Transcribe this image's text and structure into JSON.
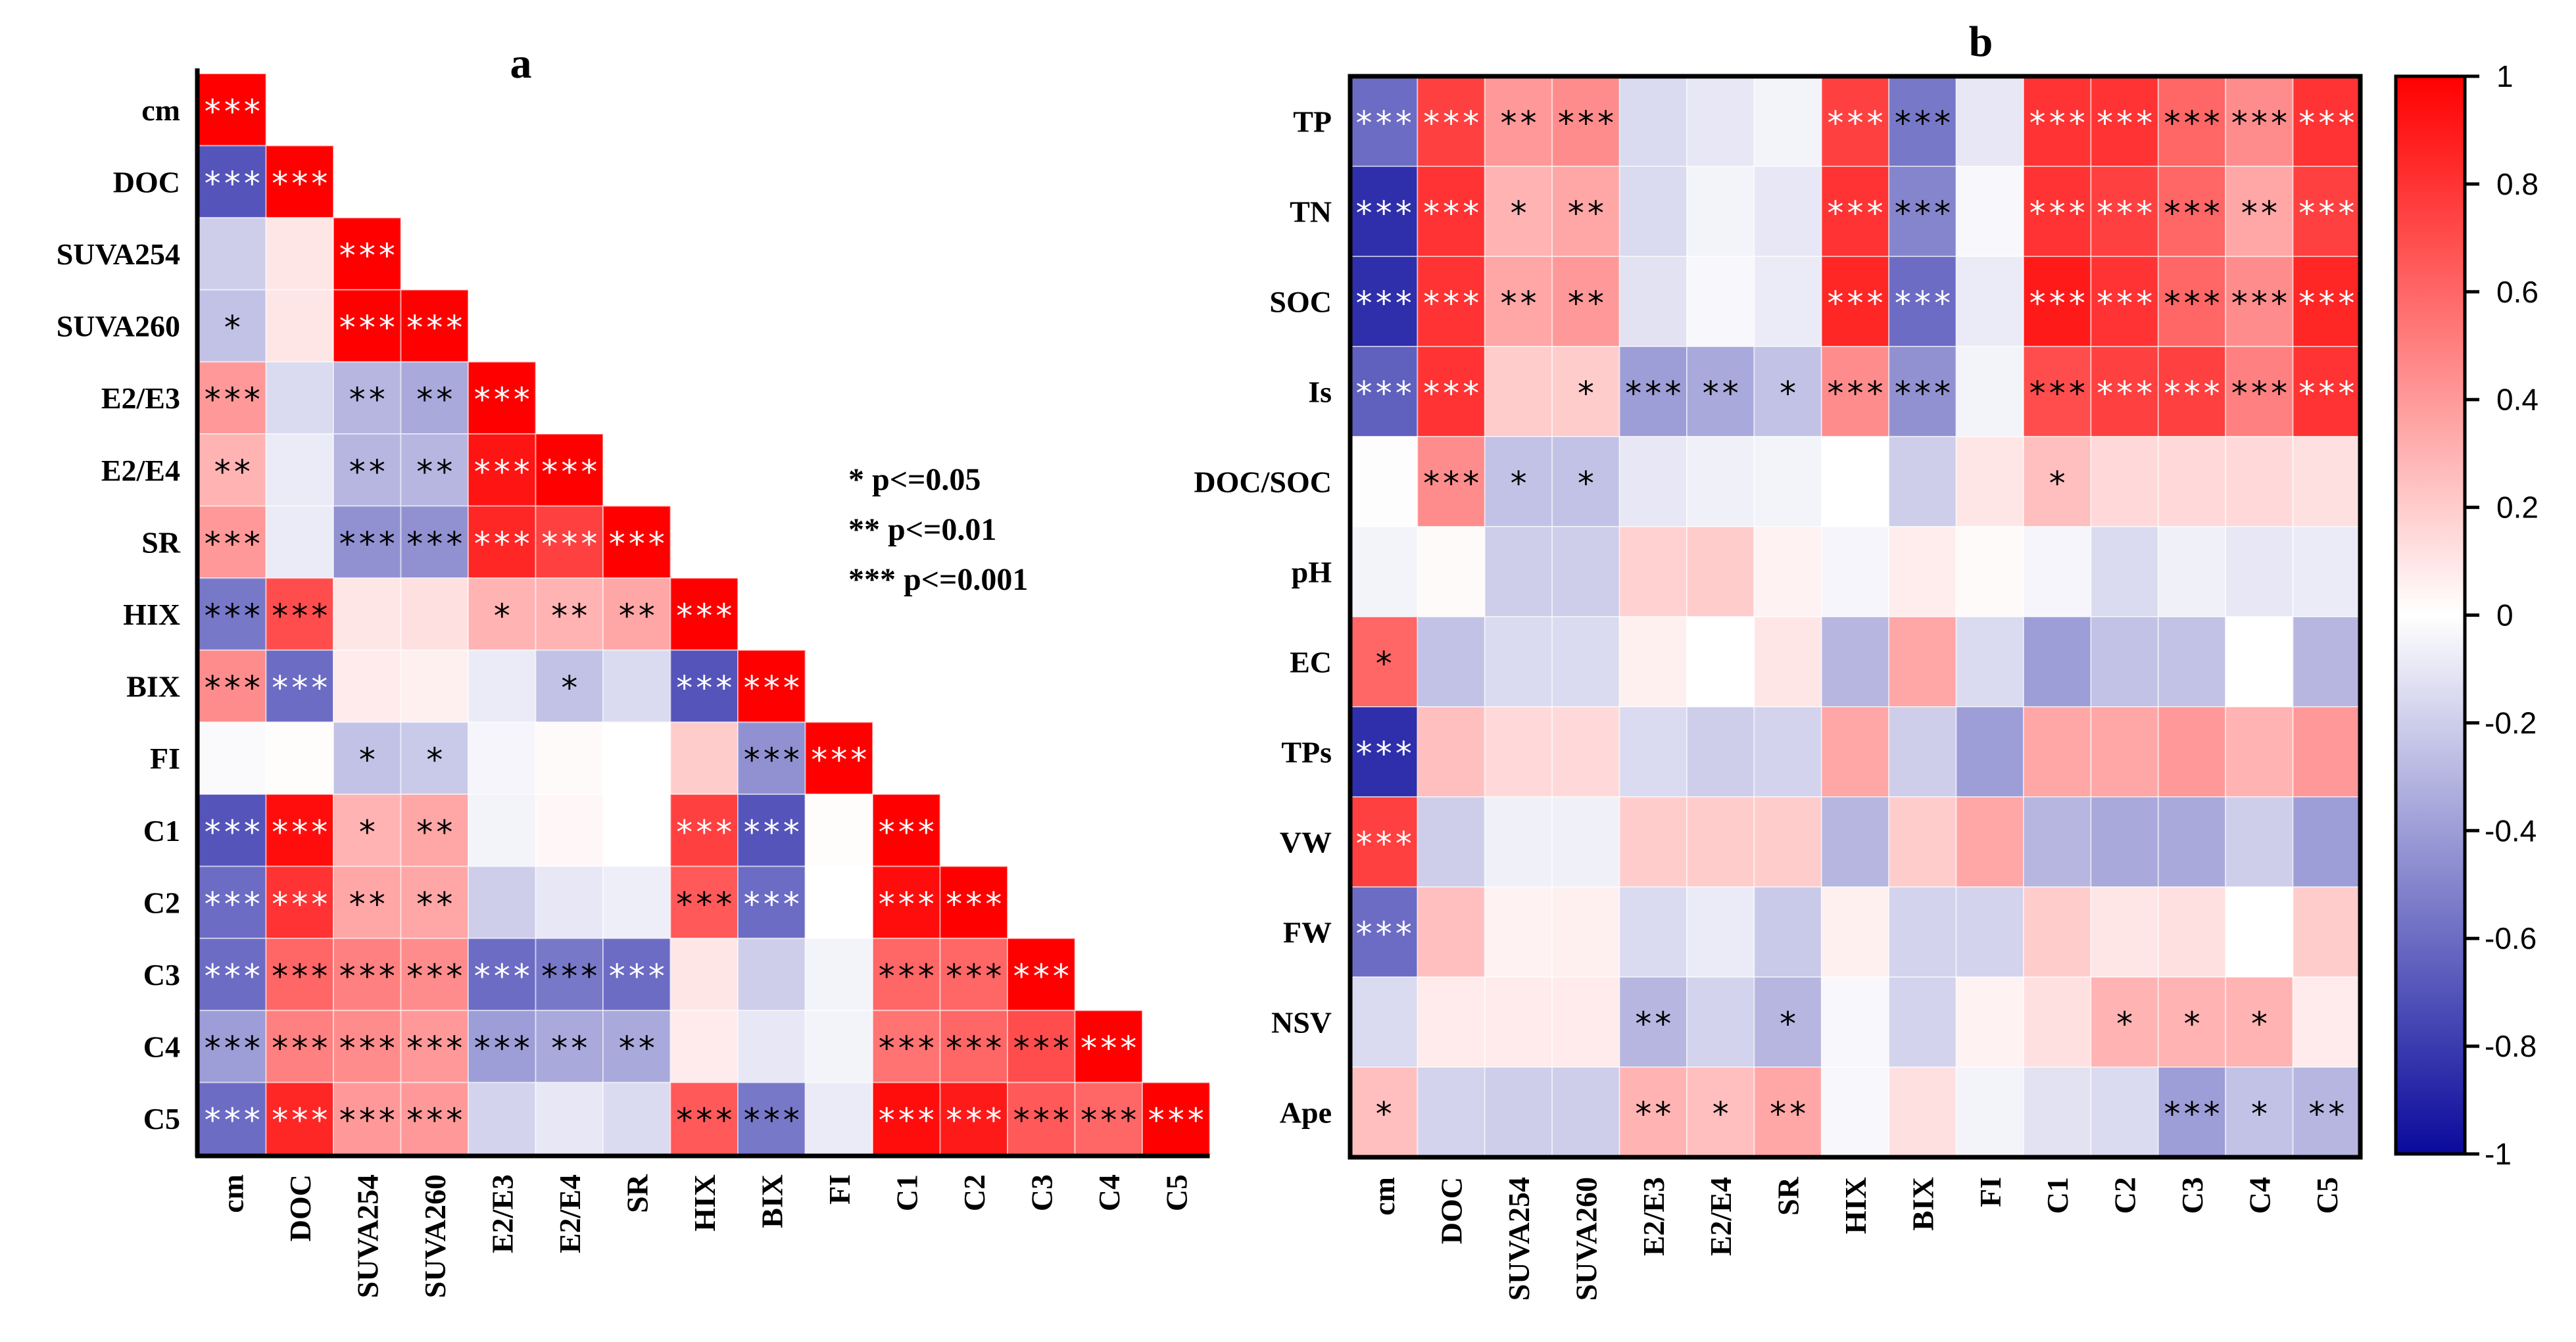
{
  "chart_data": [
    {
      "type": "heatmap",
      "title": "a",
      "shape": "lower-triangle",
      "rows": [
        "cm",
        "DOC",
        "SUVA254",
        "SUVA260",
        "E2/E3",
        "E2/E4",
        "SR",
        "HIX",
        "BIX",
        "FI",
        "C1",
        "C2",
        "C3",
        "C4",
        "C5"
      ],
      "cols": [
        "cm",
        "DOC",
        "SUVA254",
        "SUVA260",
        "E2/E3",
        "E2/E4",
        "SR",
        "HIX",
        "BIX",
        "FI",
        "C1",
        "C2",
        "C3",
        "C4",
        "C5"
      ],
      "values": [
        [
          1
        ],
        [
          -0.7,
          1
        ],
        [
          -0.2,
          0.1,
          1
        ],
        [
          -0.25,
          0.1,
          1,
          1
        ],
        [
          0.4,
          -0.15,
          -0.3,
          -0.35,
          1
        ],
        [
          0.3,
          -0.08,
          -0.3,
          -0.3,
          0.92,
          1
        ],
        [
          0.4,
          -0.08,
          -0.45,
          -0.45,
          0.85,
          0.75,
          1
        ],
        [
          -0.55,
          0.7,
          0.1,
          0.12,
          0.3,
          0.3,
          0.35,
          1
        ],
        [
          0.45,
          -0.6,
          0.08,
          0.06,
          -0.08,
          -0.25,
          -0.15,
          -0.7,
          1
        ],
        [
          -0.02,
          0.01,
          -0.25,
          -0.22,
          -0.04,
          0.02,
          0,
          0.2,
          -0.45,
          1
        ],
        [
          -0.7,
          0.95,
          0.3,
          0.35,
          -0.05,
          0.03,
          0,
          0.75,
          -0.7,
          0.01,
          1
        ],
        [
          -0.6,
          0.8,
          0.35,
          0.35,
          -0.2,
          -0.1,
          -0.07,
          0.65,
          -0.6,
          0,
          0.95,
          1
        ],
        [
          -0.6,
          0.6,
          0.5,
          0.45,
          -0.6,
          -0.55,
          -0.6,
          0.1,
          -0.2,
          -0.05,
          0.6,
          0.6,
          1
        ],
        [
          -0.4,
          0.5,
          0.45,
          0.4,
          -0.4,
          -0.35,
          -0.35,
          0.08,
          -0.1,
          -0.05,
          0.55,
          0.6,
          0.7,
          1
        ],
        [
          -0.6,
          0.85,
          0.4,
          0.4,
          -0.18,
          -0.1,
          -0.15,
          0.65,
          -0.55,
          -0.08,
          0.95,
          0.9,
          0.65,
          0.6,
          1
        ]
      ],
      "significance": [
        [
          "***"
        ],
        [
          "***",
          "***"
        ],
        [
          "",
          "",
          "***"
        ],
        [
          "*",
          "",
          "***",
          "***"
        ],
        [
          "***",
          "",
          "**",
          "**",
          "***"
        ],
        [
          "**",
          "",
          "**",
          "**",
          "***",
          "***"
        ],
        [
          "***",
          "",
          "***",
          "***",
          "***",
          "***",
          "***"
        ],
        [
          "***",
          "***",
          "",
          "",
          "*",
          "**",
          "**",
          "***"
        ],
        [
          "***",
          "***",
          "",
          "",
          "",
          "*",
          "",
          "***",
          "***"
        ],
        [
          "",
          "",
          "*",
          "*",
          "",
          "",
          "",
          "",
          "***",
          "***"
        ],
        [
          "***",
          "***",
          "*",
          "**",
          "",
          "",
          "",
          "***",
          "***",
          "",
          "***"
        ],
        [
          "***",
          "***",
          "**",
          "**",
          "",
          "",
          "",
          "***",
          "***",
          "",
          "***",
          "***"
        ],
        [
          "***",
          "***",
          "***",
          "***",
          "***",
          "***",
          "***",
          "",
          "",
          "",
          "***",
          "***",
          "***"
        ],
        [
          "***",
          "***",
          "***",
          "***",
          "***",
          "**",
          "**",
          "",
          "",
          "",
          "***",
          "***",
          "***",
          "***"
        ],
        [
          "***",
          "***",
          "***",
          "***",
          "",
          "",
          "",
          "***",
          "***",
          "",
          "***",
          "***",
          "***",
          "***",
          "***"
        ]
      ],
      "legend": [
        "* p<=0.05",
        "** p<=0.01",
        "*** p<=0.001"
      ]
    },
    {
      "type": "heatmap",
      "title": "b",
      "shape": "full",
      "rows": [
        "TP",
        "TN",
        "SOC",
        "Is",
        "DOC/SOC",
        "pH",
        "EC",
        "TPs",
        "VW",
        "FW",
        "NSV",
        "Ape"
      ],
      "cols": [
        "cm",
        "DOC",
        "SUVA254",
        "SUVA260",
        "E2/E3",
        "E2/E4",
        "SR",
        "HIX",
        "BIX",
        "FI",
        "C1",
        "C2",
        "C3",
        "C4",
        "C5"
      ],
      "values": [
        [
          -0.6,
          0.75,
          0.4,
          0.45,
          -0.15,
          -0.1,
          -0.05,
          0.75,
          -0.55,
          -0.1,
          0.8,
          0.8,
          0.6,
          0.45,
          0.8
        ],
        [
          -0.85,
          0.8,
          0.3,
          0.35,
          -0.15,
          -0.05,
          -0.1,
          0.8,
          -0.5,
          -0.03,
          0.8,
          0.75,
          0.6,
          0.35,
          0.75
        ],
        [
          -0.85,
          0.8,
          0.35,
          0.4,
          -0.12,
          -0.03,
          -0.08,
          0.85,
          -0.6,
          -0.08,
          0.9,
          0.8,
          0.6,
          0.45,
          0.85
        ],
        [
          -0.65,
          0.8,
          0.2,
          0.2,
          -0.4,
          -0.35,
          -0.25,
          0.45,
          -0.45,
          -0.05,
          0.7,
          0.75,
          0.75,
          0.5,
          0.8
        ],
        [
          -0.01,
          0.45,
          -0.25,
          -0.25,
          -0.1,
          -0.06,
          -0.05,
          0,
          -0.2,
          0.1,
          0.25,
          0.15,
          0.15,
          0.15,
          0.12
        ],
        [
          -0.05,
          0.02,
          -0.2,
          -0.2,
          0.18,
          0.2,
          0.05,
          -0.04,
          0.07,
          0.02,
          -0.04,
          -0.15,
          -0.06,
          -0.1,
          -0.08
        ],
        [
          0.6,
          -0.25,
          -0.15,
          -0.15,
          0.06,
          0,
          0.1,
          -0.3,
          0.35,
          -0.15,
          -0.4,
          -0.25,
          -0.25,
          0,
          -0.3
        ],
        [
          -0.85,
          0.25,
          0.15,
          0.15,
          -0.15,
          -0.2,
          -0.18,
          0.35,
          -0.2,
          -0.4,
          0.35,
          0.35,
          0.4,
          0.3,
          0.4
        ],
        [
          0.75,
          -0.2,
          -0.06,
          -0.06,
          0.2,
          0.2,
          0.2,
          -0.3,
          0.2,
          0.35,
          -0.3,
          -0.35,
          -0.35,
          -0.2,
          -0.4
        ],
        [
          -0.6,
          0.25,
          0.05,
          0.06,
          -0.15,
          -0.08,
          -0.22,
          0.06,
          -0.18,
          -0.18,
          0.2,
          0.1,
          0.12,
          0,
          0.2
        ],
        [
          -0.15,
          0.08,
          0.08,
          0.08,
          -0.3,
          -0.18,
          -0.3,
          -0.03,
          -0.18,
          0.05,
          0.12,
          0.3,
          0.3,
          0.3,
          0.08
        ],
        [
          0.25,
          -0.18,
          -0.2,
          -0.2,
          0.3,
          0.25,
          0.35,
          -0.03,
          0.12,
          -0.05,
          -0.12,
          -0.15,
          -0.4,
          -0.25,
          -0.3
        ]
      ],
      "significance": [
        [
          "***",
          "***",
          "**",
          "***",
          "",
          "",
          "",
          "***",
          "***",
          "",
          "***",
          "***",
          "***",
          "***",
          "***"
        ],
        [
          "***",
          "***",
          "*",
          "**",
          "",
          "",
          "",
          "***",
          "***",
          "",
          "***",
          "***",
          "***",
          "**",
          "***"
        ],
        [
          "***",
          "***",
          "**",
          "**",
          "",
          "",
          "",
          "***",
          "***",
          "",
          "***",
          "***",
          "***",
          "***",
          "***"
        ],
        [
          "***",
          "***",
          "",
          "*",
          "***",
          "**",
          "*",
          "***",
          "***",
          "",
          "***",
          "***",
          "***",
          "***",
          "***"
        ],
        [
          "",
          "***",
          "*",
          "*",
          "",
          "",
          "",
          "",
          "",
          "",
          "*",
          "",
          "",
          "",
          ""
        ],
        [
          "",
          "",
          "",
          "",
          "",
          "",
          "",
          "",
          "",
          "",
          "",
          "",
          "",
          "",
          ""
        ],
        [
          "*",
          "",
          "",
          "",
          "",
          "",
          "",
          "",
          "",
          "",
          "",
          "",
          "",
          "",
          ""
        ],
        [
          "***",
          "",
          "",
          "",
          "",
          "",
          "",
          "",
          "",
          "",
          "",
          "",
          "",
          "",
          ""
        ],
        [
          "***",
          "",
          "",
          "",
          "",
          "",
          "",
          "",
          "",
          "",
          "",
          "",
          "",
          "",
          ""
        ],
        [
          "***",
          "",
          "",
          "",
          "",
          "",
          "",
          "",
          "",
          "",
          "",
          "",
          "",
          "",
          ""
        ],
        [
          "",
          "",
          "",
          "",
          "**",
          "",
          "*",
          "",
          "",
          "",
          "",
          "*",
          "*",
          "*",
          ""
        ],
        [
          "*",
          "",
          "",
          "",
          "**",
          "*",
          "**",
          "",
          "",
          "",
          "",
          "",
          "***",
          "*",
          "**"
        ]
      ]
    }
  ],
  "colorbar": {
    "range": [
      -1,
      1
    ],
    "ticks": [
      "1",
      "0.8",
      "0.6",
      "0.4",
      "0.2",
      "0",
      "-0.2",
      "-0.4",
      "-0.6",
      "-0.8",
      "-1"
    ],
    "tick_values": [
      1,
      0.8,
      0.6,
      0.4,
      0.2,
      0,
      -0.2,
      -0.4,
      -0.6,
      -0.8,
      -1
    ],
    "colors": {
      "negative": "#0a0a9c",
      "zero": "#ffffff",
      "positive": "#ff0000"
    }
  }
}
